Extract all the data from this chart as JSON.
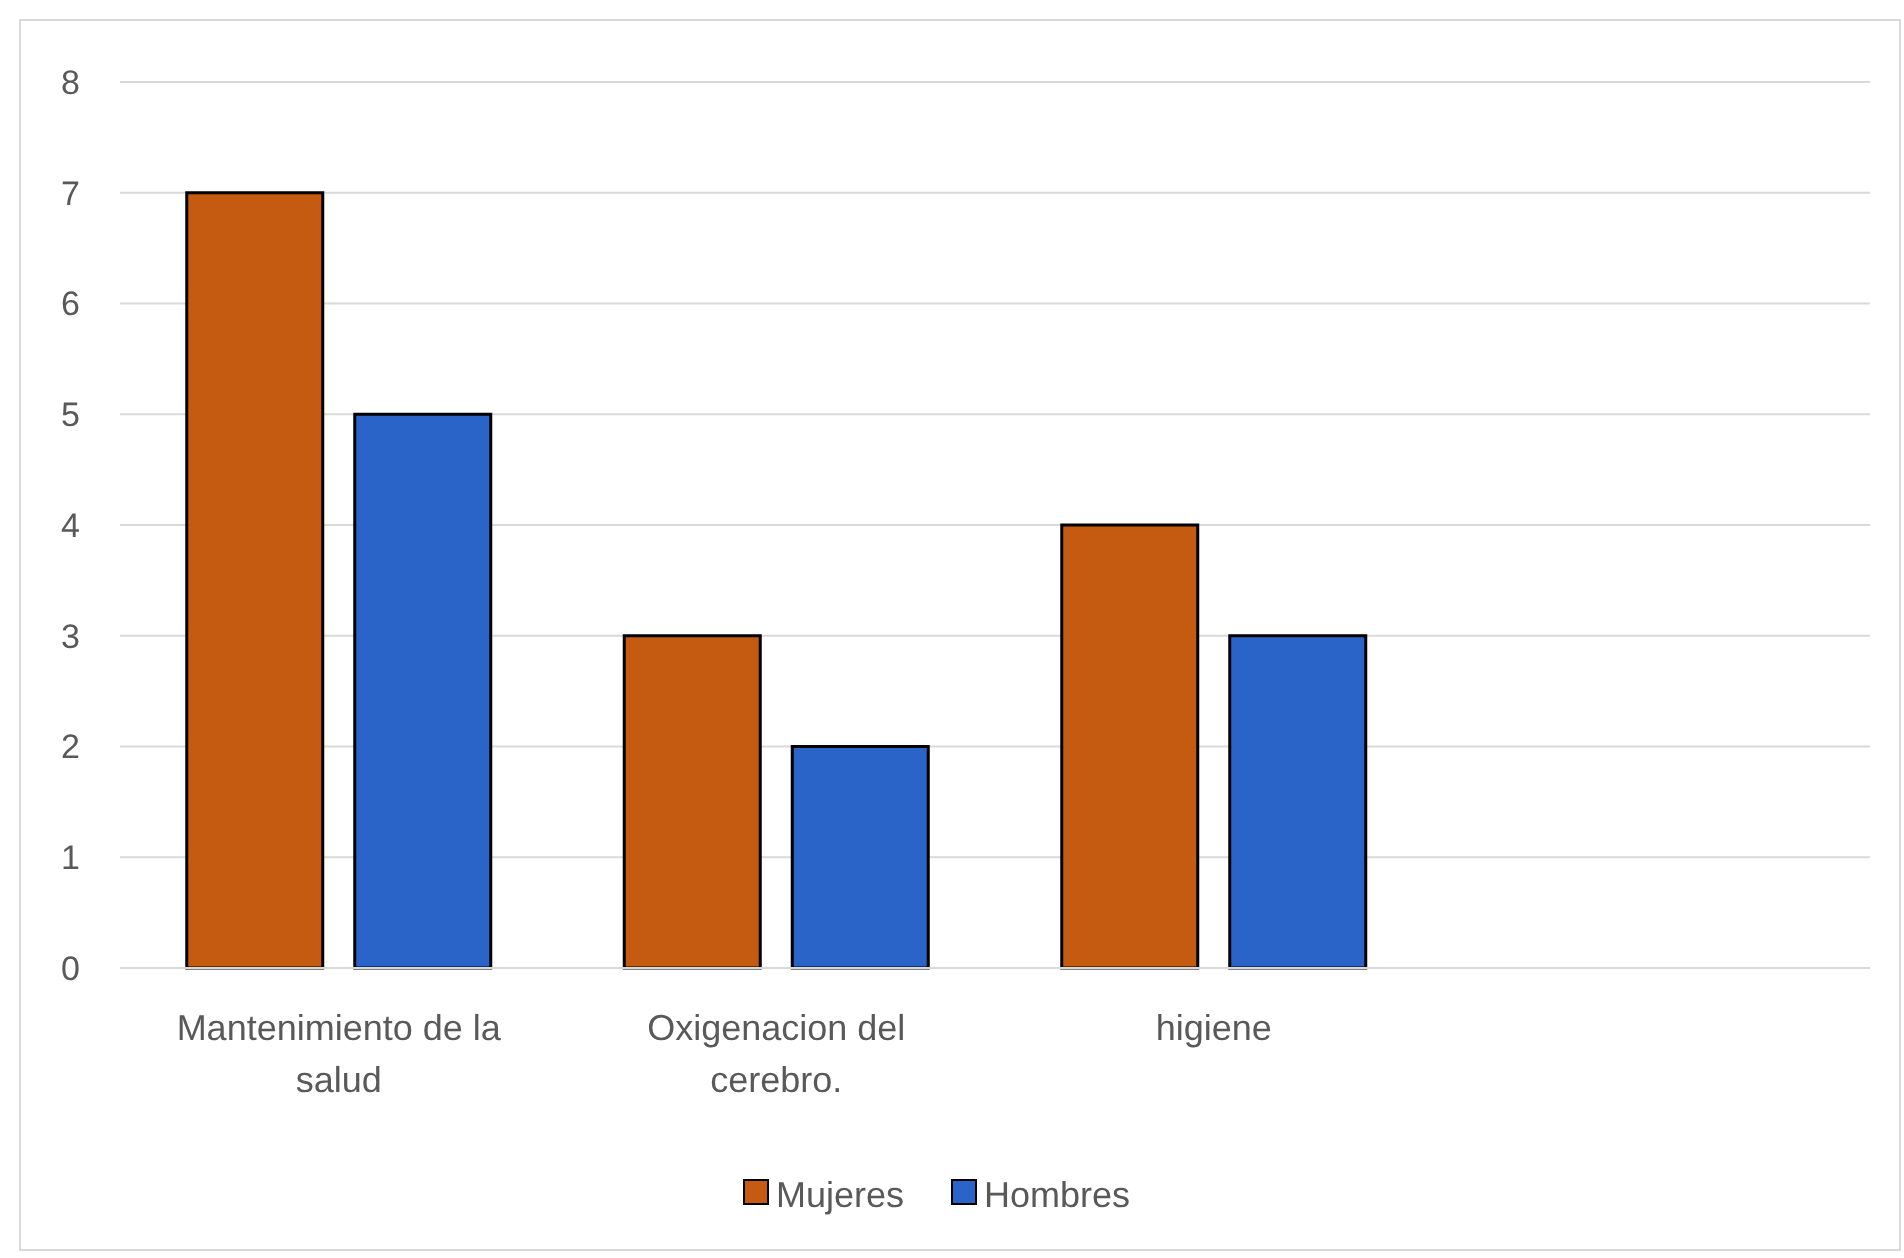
{
  "chart_data": {
    "type": "bar",
    "categories": [
      "Mantenimiento de la salud",
      "Oxigenacion del cerebro.",
      "higiene",
      null
    ],
    "series": [
      {
        "name": "Mujeres",
        "color": "#c55a11",
        "values": [
          7,
          3,
          4,
          null
        ]
      },
      {
        "name": "Hombres",
        "color": "#2b64c8",
        "values": [
          5,
          2,
          3,
          null
        ]
      }
    ],
    "ylim": [
      0,
      8
    ],
    "yticks": [
      0,
      1,
      2,
      3,
      4,
      5,
      6,
      7,
      8
    ],
    "grid": "y",
    "legend": "bottom"
  }
}
